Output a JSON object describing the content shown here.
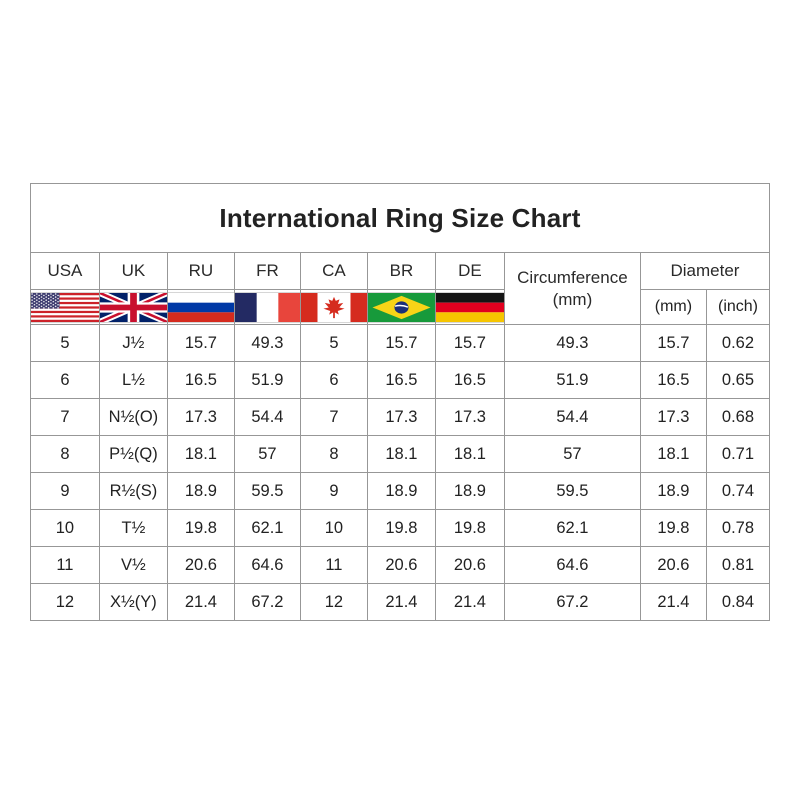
{
  "chart_data": {
    "type": "table",
    "title": "International Ring Size Chart",
    "country_columns": [
      "USA",
      "UK",
      "RU",
      "FR",
      "CA",
      "BR",
      "DE"
    ],
    "circumference_header": {
      "line1": "Circumference",
      "line2": "(mm)"
    },
    "diameter_header": {
      "label": "Diameter",
      "sub_mm": "(mm)",
      "sub_inch": "(inch)"
    },
    "column_headers_flat": [
      "USA",
      "UK",
      "RU",
      "FR",
      "CA",
      "BR",
      "DE",
      "Circumference (mm)",
      "Diameter (mm)",
      "Diameter (inch)"
    ],
    "rows": [
      [
        "5",
        "J½",
        "15.7",
        "49.3",
        "5",
        "15.7",
        "15.7",
        "49.3",
        "15.7",
        "0.62"
      ],
      [
        "6",
        "L½",
        "16.5",
        "51.9",
        "6",
        "16.5",
        "16.5",
        "51.9",
        "16.5",
        "0.65"
      ],
      [
        "7",
        "N½(O)",
        "17.3",
        "54.4",
        "7",
        "17.3",
        "17.3",
        "54.4",
        "17.3",
        "0.68"
      ],
      [
        "8",
        "P½(Q)",
        "18.1",
        "57",
        "8",
        "18.1",
        "18.1",
        "57",
        "18.1",
        "0.71"
      ],
      [
        "9",
        "R½(S)",
        "18.9",
        "59.5",
        "9",
        "18.9",
        "18.9",
        "59.5",
        "18.9",
        "0.74"
      ],
      [
        "10",
        "T½",
        "19.8",
        "62.1",
        "10",
        "19.8",
        "19.8",
        "62.1",
        "19.8",
        "0.78"
      ],
      [
        "11",
        "V½",
        "20.6",
        "64.6",
        "11",
        "20.6",
        "20.6",
        "64.6",
        "20.6",
        "0.81"
      ],
      [
        "12",
        "X½(Y)",
        "21.4",
        "67.2",
        "12",
        "21.4",
        "21.4",
        "67.2",
        "21.4",
        "0.84"
      ]
    ]
  },
  "flags": [
    "usa-flag",
    "uk-flag",
    "russia-flag",
    "france-flag",
    "canada-flag",
    "brazil-flag",
    "germany-flag"
  ],
  "colors": {
    "background": "#ffffff",
    "table_border": "#979797",
    "title_text": "#1b1b1b",
    "cell_text": "#2d2d2d",
    "flag_red": "#cc2229",
    "flag_navy": "#232a63",
    "flag_russia_blue": "#0039a6",
    "flag_brazil_green": "#179a3b",
    "flag_brazil_yellow": "#f7d417",
    "flag_germany_gold": "#f6c500"
  }
}
